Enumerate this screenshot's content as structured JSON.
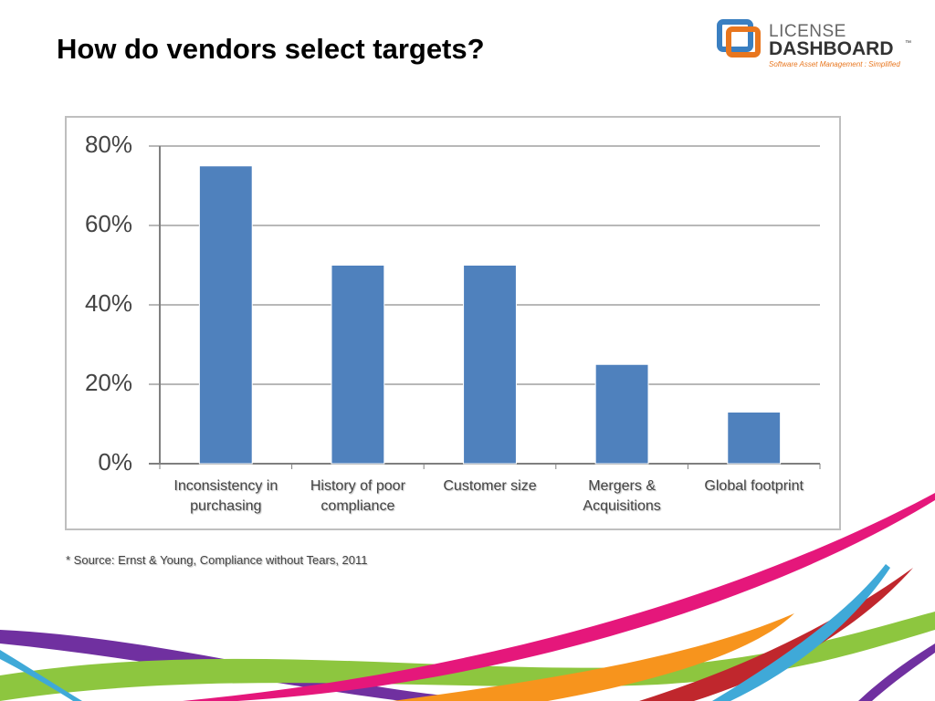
{
  "title": "How do vendors select targets?",
  "logo": {
    "top": "LICENSE",
    "main": "DASHBOARD",
    "mark": "™",
    "tagline": "Software Asset Management : Simplified"
  },
  "chart_data": {
    "type": "bar",
    "categories": [
      "Inconsistency in purchasing",
      "History of poor compliance",
      "Customer size",
      "Mergers & Acquisitions",
      "Global footprint"
    ],
    "values": [
      75,
      50,
      50,
      25,
      13
    ],
    "color": "#4f81bd",
    "ylim": [
      0,
      80
    ],
    "yticks": [
      {
        "value": 0,
        "label": "0%"
      },
      {
        "value": 20,
        "label": "20%"
      },
      {
        "value": 40,
        "label": "40%"
      },
      {
        "value": 60,
        "label": "60%"
      },
      {
        "value": 80,
        "label": "80%"
      }
    ],
    "grid": true
  },
  "footnote": "* Source: Ernst & Young, Compliance without Tears, 2011"
}
